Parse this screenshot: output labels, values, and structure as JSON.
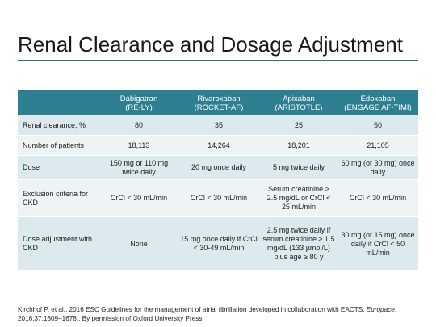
{
  "slide": {
    "title": "Renal Clearance and Dosage Adjustment"
  },
  "table": {
    "headers": [
      {
        "name": "",
        "trial": ""
      },
      {
        "name": "Dabigatran",
        "trial": "(RE-LY)"
      },
      {
        "name": "Rivaroxaban",
        "trial": "(ROCKET-AF)"
      },
      {
        "name": "Apixaban",
        "trial": "(ARISTOTLE)"
      },
      {
        "name": "Edoxaban",
        "trial": "(ENGAGE AF-TIMI)"
      }
    ],
    "rows": [
      {
        "label": "Renal clearance, %",
        "cells": [
          "80",
          "35",
          "25",
          "50"
        ]
      },
      {
        "label": "Number of patients",
        "cells": [
          "18,113",
          "14,264",
          "18,201",
          "21,105"
        ]
      },
      {
        "label": "Dose",
        "cells": [
          "150 mg or 110 mg twice daily",
          "20 mg once daily",
          "5 mg twice daily",
          "60 mg (or 30 mg) once daily"
        ]
      },
      {
        "label": "Exclusion criteria for CKD",
        "cells": [
          "CrCl < 30 mL/min",
          "CrCl < 30 mL/min",
          "Serum creatinine > 2.5 mg/dL or CrCl < 25 mL/min",
          "CrCl < 30 mL/min"
        ]
      },
      {
        "label": "Dose adjustment with CKD",
        "cells": [
          "None",
          "15 mg once daily if CrCl < 30-49 mL/min",
          "2.5 mg twice daily if serum creatinine ≥ 1.5 mg/dL (133 µmol/L) plus age ≥ 80 y",
          "30 mg (or 15 mg) once daily if CrCl < 50 mL/min"
        ]
      }
    ]
  },
  "footnote": {
    "text1": "Kirchhof P, et al., 2016 ESC Guidelines for the management of atrial fibrillation developed in collaboration with EACTS. ",
    "journal": "Europace",
    "text2": ". 2016;37:1609–1678., By permission of Oxford University Press."
  }
}
